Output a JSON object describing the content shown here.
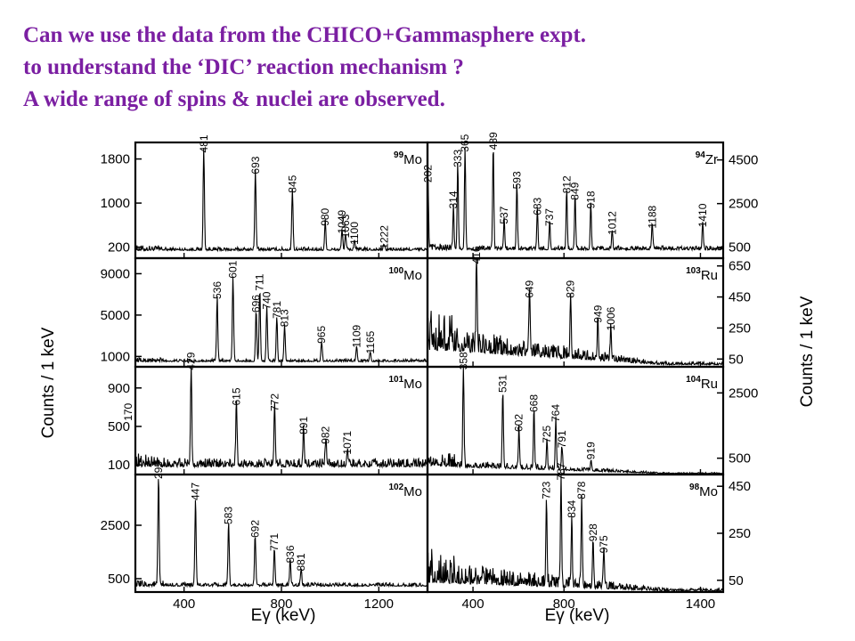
{
  "heading": {
    "line1": "Can we use the data from the  CHICO+Gammasphere expt.",
    "line2": "to understand the ‘DIC’ reaction mechanism ?",
    "line3": "A wide range of spins & nuclei are observed."
  },
  "colors": {
    "heading": "#7b1fa2",
    "spectrum": "#000000"
  },
  "chart_data": {
    "type": "line",
    "xlabel": "Eγ (keV)",
    "ylabel_left": "Counts / 1 keV",
    "ylabel_right": "Counts / 1 keV",
    "grid": false,
    "columns": [
      {
        "xlim": [
          200,
          1400
        ],
        "x_ticks": [
          400,
          800,
          1200
        ]
      },
      {
        "xlim": [
          200,
          1500
        ],
        "x_ticks": [
          400,
          800,
          1400
        ]
      }
    ],
    "panels": [
      {
        "id": "p0",
        "col": 0,
        "row": 0,
        "mass": "99",
        "element": "Mo",
        "axis": "left",
        "ylim": [
          0,
          2100
        ],
        "y_ticks": [
          200,
          1000,
          1800
        ],
        "baseline": 140,
        "noise": 60,
        "peaks": [
          [
            481,
            1850,
            "481"
          ],
          [
            693,
            1460,
            "693"
          ],
          [
            845,
            1120,
            "845"
          ],
          [
            980,
            520,
            "980"
          ],
          [
            1049,
            380,
            "1049"
          ],
          [
            1063,
            300,
            "1063"
          ],
          [
            1100,
            180,
            "1100"
          ],
          [
            1222,
            100,
            "1222"
          ]
        ]
      },
      {
        "id": "p1",
        "col": 0,
        "row": 1,
        "mass": "100",
        "element": "Mo",
        "axis": "left",
        "ylim": [
          0,
          10500
        ],
        "y_ticks": [
          1000,
          5000,
          9000
        ],
        "baseline": 500,
        "noise": 250,
        "peaks": [
          [
            536,
            6200,
            "536"
          ],
          [
            601,
            8200,
            "601"
          ],
          [
            696,
            4900,
            "696"
          ],
          [
            711,
            7000,
            "711"
          ],
          [
            740,
            5200,
            "740"
          ],
          [
            781,
            4300,
            "781"
          ],
          [
            813,
            3500,
            "813"
          ],
          [
            965,
            1900,
            "965"
          ],
          [
            1109,
            1500,
            "1109"
          ],
          [
            1165,
            900,
            "1165"
          ]
        ]
      },
      {
        "id": "p2",
        "col": 0,
        "row": 2,
        "mass": "101",
        "element": "Mo",
        "axis": "left",
        "ylim": [
          0,
          1120
        ],
        "y_ticks": [
          100,
          500,
          900
        ],
        "baseline": 80,
        "noise": 90,
        "peaks": [
          [
            170,
            520,
            "170"
          ],
          [
            429,
            1050,
            "429"
          ],
          [
            615,
            680,
            "615"
          ],
          [
            772,
            620,
            "772"
          ],
          [
            891,
            380,
            "891"
          ],
          [
            982,
            280,
            "982"
          ],
          [
            1071,
            170,
            "1071"
          ]
        ]
      },
      {
        "id": "p3",
        "col": 0,
        "row": 3,
        "mass": "102",
        "element": "Mo",
        "axis": "left",
        "ylim": [
          0,
          4400
        ],
        "y_ticks": [
          500,
          2500
        ],
        "baseline": 220,
        "noise": 130,
        "peaks": [
          [
            295,
            4100,
            "295"
          ],
          [
            447,
            3300,
            "447"
          ],
          [
            583,
            2400,
            "583"
          ],
          [
            692,
            1900,
            "692"
          ],
          [
            771,
            1400,
            "771"
          ],
          [
            836,
            950,
            "836"
          ],
          [
            881,
            650,
            "881"
          ]
        ]
      },
      {
        "id": "p4",
        "col": 1,
        "row": 0,
        "mass": "94",
        "element": "Zr",
        "axis": "right",
        "ylim": [
          0,
          5300
        ],
        "y_ticks": [
          500,
          2500,
          4500
        ],
        "baseline": 380,
        "noise": 180,
        "peaks": [
          [
            202,
            3300,
            "202"
          ],
          [
            314,
            2100,
            "314"
          ],
          [
            333,
            4000,
            "333"
          ],
          [
            365,
            4700,
            "365"
          ],
          [
            489,
            4800,
            "489"
          ],
          [
            537,
            1400,
            "537"
          ],
          [
            593,
            3000,
            "593"
          ],
          [
            683,
            1800,
            "683"
          ],
          [
            737,
            1300,
            "737"
          ],
          [
            812,
            2800,
            "812"
          ],
          [
            849,
            2500,
            "849"
          ],
          [
            918,
            2100,
            "918"
          ],
          [
            1012,
            900,
            "1012"
          ],
          [
            1188,
            1200,
            "1188"
          ],
          [
            1410,
            1250,
            "1410"
          ]
        ]
      },
      {
        "id": "p5",
        "col": 1,
        "row": 1,
        "mass": "103",
        "element": "Ru",
        "axis": "right",
        "ylim": [
          0,
          700
        ],
        "y_ticks": [
          50,
          250,
          450,
          650
        ],
        "baseline": 110,
        "noise": 170,
        "noise_decay": true,
        "peaks": [
          [
            416,
            640,
            "416"
          ],
          [
            649,
            420,
            "649"
          ],
          [
            829,
            420,
            "829"
          ],
          [
            949,
            260,
            "949"
          ],
          [
            1006,
            210,
            "1006"
          ]
        ]
      },
      {
        "id": "p6",
        "col": 1,
        "row": 2,
        "mass": "104",
        "element": "Ru",
        "axis": "right",
        "ylim": [
          0,
          3300
        ],
        "y_ticks": [
          500,
          2500
        ],
        "baseline": 260,
        "noise": 280,
        "noise_decay": true,
        "peaks": [
          [
            358,
            3100,
            "358"
          ],
          [
            531,
            2400,
            "531"
          ],
          [
            602,
            1200,
            "602"
          ],
          [
            668,
            1800,
            "668"
          ],
          [
            725,
            850,
            "725"
          ],
          [
            764,
            1500,
            "764"
          ],
          [
            791,
            700,
            "791"
          ],
          [
            919,
            350,
            "919"
          ]
        ]
      },
      {
        "id": "p7",
        "col": 1,
        "row": 3,
        "mass": "98",
        "element": "Mo",
        "axis": "right",
        "ylim": [
          0,
          500
        ],
        "y_ticks": [
          50,
          250,
          450
        ],
        "baseline": 40,
        "noise": 100,
        "noise_decay": true,
        "peaks": [
          [
            723,
            380,
            "723"
          ],
          [
            787,
            460,
            "787"
          ],
          [
            834,
            300,
            "834"
          ],
          [
            878,
            380,
            "878"
          ],
          [
            928,
            200,
            "928"
          ],
          [
            975,
            150,
            "975"
          ]
        ]
      }
    ]
  }
}
